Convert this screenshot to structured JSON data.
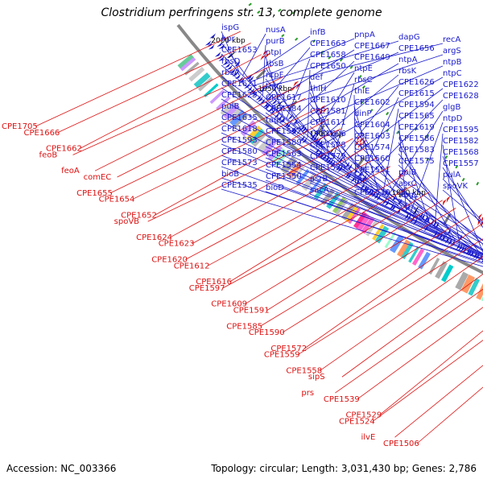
{
  "title": "Clostridium perfringens str. 13, complete genome",
  "footer": {
    "accession": "Accession: NC_003366",
    "topology": "Topology: circular; Length: 3,031,430 bp; Genes: 2,786"
  },
  "colors": {
    "forward": "#1a1acc",
    "reverse": "#dd1111",
    "backbone": "#888888",
    "gc_tick": "#2a9a2a"
  },
  "ticks": [
    {
      "label": "2000 kbp"
    },
    {
      "label": "1950 kbp"
    },
    {
      "label": "1900 kbp"
    },
    {
      "label": "1850 kbp"
    },
    {
      "label": "1800 kbp"
    }
  ],
  "blue_labels": [
    "ispG",
    "nusA",
    "infB",
    "pnpA",
    "dapG",
    "recA",
    "hpr",
    "purB",
    "CPE1663",
    "CPE1667",
    "CPE1656",
    "argS",
    "CPE1653",
    "ntpI",
    "CPE1658",
    "CPE1649",
    "ntpA",
    "ntpB",
    "rbsD",
    "rbsB",
    "CPE1650",
    "ntpE",
    "rbsK",
    "ntpC",
    "rbsA",
    "ntpF",
    "def",
    "rbsC",
    "CPE1626",
    "CPE1622",
    "CPE1621",
    "thiG",
    "thiH",
    "thiE",
    "CPE1615",
    "CPE1628",
    "CPE1625",
    "CPE1617",
    "CPE1610",
    "CPE1602",
    "CPE1594",
    "glgB",
    "pulB",
    "CPE1584",
    "CPE1581",
    "dinP",
    "CPE1565",
    "ntpD",
    "CPE1635",
    "tagO",
    "CPE1611",
    "CPE1604",
    "CPE1619",
    "CPE1595",
    "CPE1618",
    "CPE1592",
    "CPE1606",
    "CPE1603",
    "CPE1586",
    "CPE1582",
    "CPE1593",
    "CPE1589",
    "CPE1578",
    "CPE1574",
    "CPE1583",
    "CPE1568",
    "CPE1580",
    "CPE1563",
    "CPE1579",
    "CPE1560",
    "CPE1575",
    "CPE1557",
    "CPE1573",
    "CPE1554",
    "CPE1570",
    "CPE1551",
    "ppiB",
    "pulA",
    "bioB",
    "CPE1550",
    "asrB",
    "fdh",
    "asrC",
    "spoVK",
    "CPE1535",
    "bioD",
    "sacA",
    "CPE1530",
    "nagL"
  ],
  "red_labels": [
    "CPE1705",
    "CPE1666",
    "CPE1662",
    "feoB",
    "feoA",
    "comEC",
    "CPE1655",
    "CPE1654",
    "CPE1652",
    "spoVB",
    "CPE1624",
    "CPE1623",
    "CPE1620",
    "CPE1612",
    "CPE1616",
    "CPE1597",
    "CPE1609",
    "CPE1591",
    "CPE1585",
    "CPE1590",
    "CPE1572",
    "CPE1559",
    "CPE1558",
    "sipS",
    "prs",
    "CPE1539",
    "CPE1529",
    "CPE1524",
    "ilvE",
    "CPE1506"
  ]
}
